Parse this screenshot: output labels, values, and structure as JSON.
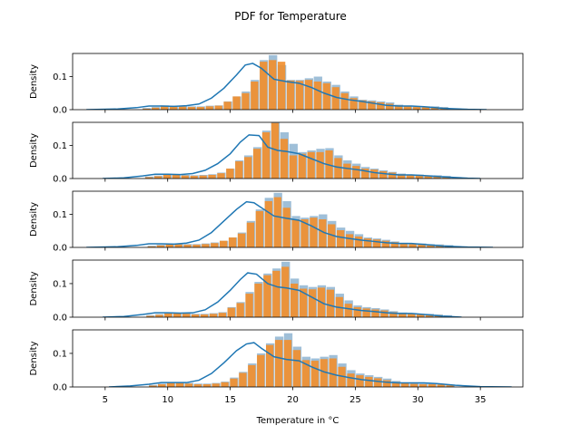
{
  "chart_data": {
    "type": "histogram-kde",
    "title": "PDF for Temperature",
    "xlabel": "Temperature in °C",
    "ylabel": "Density",
    "xlim": [
      2.4,
      38.4
    ],
    "ylim": [
      0,
      0.17
    ],
    "xticks": [
      "5",
      "10",
      "15",
      "20",
      "25",
      "30",
      "35"
    ],
    "yticks": [
      "0.0",
      "0.1"
    ],
    "colors": {
      "hist_back": "#9fbfd8",
      "hist_front": "#f28e2b",
      "kde": "#1f77b4"
    },
    "panels": [
      {
        "back": {
          "start": 8.0,
          "width": 0.72,
          "values": [
            0.005,
            0.008,
            0.013,
            0.012,
            0.011,
            0.01,
            0.01,
            0.012,
            0.013,
            0.025,
            0.04,
            0.055,
            0.09,
            0.15,
            0.165,
            0.135,
            0.09,
            0.09,
            0.095,
            0.1,
            0.085,
            0.075,
            0.055,
            0.04,
            0.03,
            0.028,
            0.025,
            0.022,
            0.015,
            0.012,
            0.01,
            0.01,
            0.01,
            0.008
          ]
        },
        "front": {
          "start": 8.0,
          "width": 0.72,
          "values": [
            0.003,
            0.006,
            0.011,
            0.01,
            0.009,
            0.008,
            0.008,
            0.01,
            0.012,
            0.024,
            0.04,
            0.05,
            0.085,
            0.145,
            0.15,
            0.145,
            0.088,
            0.087,
            0.09,
            0.085,
            0.08,
            0.068,
            0.05,
            0.035,
            0.028,
            0.025,
            0.022,
            0.018,
            0.013,
            0.01,
            0.008,
            0.008,
            0.008,
            0.006
          ]
        },
        "kde_x": [
          3.5,
          6,
          7.5,
          8.5,
          9.5,
          10.5,
          11.5,
          12.5,
          13.5,
          14.5,
          15.5,
          16.2,
          16.8,
          17.5,
          18.5,
          19.5,
          20.5,
          21.5,
          22.5,
          23.5,
          24.5,
          25.5,
          26.5,
          27.5,
          28.5,
          29.5,
          30.5,
          32,
          34,
          35.5
        ],
        "kde_y": [
          0,
          0.002,
          0.006,
          0.011,
          0.011,
          0.01,
          0.012,
          0.017,
          0.035,
          0.065,
          0.105,
          0.135,
          0.14,
          0.125,
          0.092,
          0.085,
          0.08,
          0.067,
          0.05,
          0.037,
          0.03,
          0.025,
          0.019,
          0.013,
          0.011,
          0.011,
          0.009,
          0.004,
          0.001,
          0
        ]
      },
      {
        "back": {
          "start": 8.2,
          "width": 0.72,
          "values": [
            0.006,
            0.009,
            0.014,
            0.013,
            0.011,
            0.01,
            0.011,
            0.013,
            0.018,
            0.03,
            0.055,
            0.07,
            0.095,
            0.145,
            0.17,
            0.14,
            0.105,
            0.08,
            0.085,
            0.09,
            0.092,
            0.07,
            0.055,
            0.045,
            0.035,
            0.03,
            0.025,
            0.02,
            0.015,
            0.012,
            0.012,
            0.01,
            0.01,
            0.008
          ]
        },
        "front": {
          "start": 8.2,
          "width": 0.72,
          "values": [
            0.004,
            0.007,
            0.012,
            0.011,
            0.009,
            0.008,
            0.009,
            0.011,
            0.016,
            0.03,
            0.052,
            0.065,
            0.09,
            0.14,
            0.168,
            0.12,
            0.07,
            0.075,
            0.08,
            0.08,
            0.085,
            0.062,
            0.045,
            0.038,
            0.03,
            0.027,
            0.022,
            0.018,
            0.013,
            0.011,
            0.01,
            0.008,
            0.008,
            0.006
          ]
        },
        "kde_x": [
          4.8,
          6.5,
          8,
          9,
          10,
          11,
          12,
          13,
          14,
          15,
          15.8,
          16.5,
          17.3,
          18,
          18.8,
          19.5,
          20.5,
          21.5,
          22.5,
          23.5,
          24.5,
          25.5,
          26.5,
          27.5,
          28.5,
          29.5,
          30.5,
          32,
          34,
          35
        ],
        "kde_y": [
          0,
          0.002,
          0.008,
          0.013,
          0.013,
          0.012,
          0.015,
          0.025,
          0.045,
          0.075,
          0.11,
          0.132,
          0.13,
          0.095,
          0.085,
          0.082,
          0.075,
          0.06,
          0.045,
          0.035,
          0.03,
          0.025,
          0.018,
          0.014,
          0.011,
          0.011,
          0.009,
          0.005,
          0.001,
          0
        ]
      },
      {
        "back": {
          "start": 8.4,
          "width": 0.72,
          "values": [
            0.005,
            0.008,
            0.012,
            0.011,
            0.01,
            0.01,
            0.012,
            0.015,
            0.02,
            0.03,
            0.045,
            0.08,
            0.115,
            0.15,
            0.165,
            0.14,
            0.095,
            0.09,
            0.095,
            0.1,
            0.08,
            0.06,
            0.05,
            0.04,
            0.03,
            0.027,
            0.023,
            0.018,
            0.014,
            0.012,
            0.012,
            0.01,
            0.009,
            0.007
          ]
        },
        "front": {
          "start": 8.4,
          "width": 0.72,
          "values": [
            0.003,
            0.006,
            0.01,
            0.009,
            0.008,
            0.008,
            0.01,
            0.013,
            0.02,
            0.03,
            0.042,
            0.075,
            0.11,
            0.14,
            0.152,
            0.12,
            0.085,
            0.085,
            0.09,
            0.085,
            0.07,
            0.052,
            0.04,
            0.033,
            0.027,
            0.024,
            0.02,
            0.016,
            0.012,
            0.01,
            0.01,
            0.008,
            0.007,
            0.005
          ]
        },
        "kde_x": [
          3.5,
          6,
          7.5,
          8.5,
          9.5,
          10.5,
          11.5,
          12.5,
          13.5,
          14.5,
          15.5,
          16.3,
          16.9,
          17.5,
          18.5,
          19.5,
          20.5,
          21.5,
          22.5,
          23.5,
          24.5,
          25.5,
          26.5,
          27.5,
          28.5,
          29.5,
          30.5,
          32,
          34,
          36
        ],
        "kde_y": [
          0,
          0.002,
          0.006,
          0.011,
          0.011,
          0.01,
          0.013,
          0.022,
          0.045,
          0.08,
          0.115,
          0.138,
          0.135,
          0.12,
          0.095,
          0.088,
          0.082,
          0.065,
          0.045,
          0.033,
          0.027,
          0.022,
          0.018,
          0.014,
          0.012,
          0.012,
          0.009,
          0.004,
          0.001,
          0
        ]
      },
      {
        "back": {
          "start": 8.3,
          "width": 0.72,
          "values": [
            0.006,
            0.009,
            0.013,
            0.013,
            0.012,
            0.01,
            0.01,
            0.012,
            0.015,
            0.03,
            0.045,
            0.075,
            0.105,
            0.13,
            0.145,
            0.165,
            0.115,
            0.095,
            0.09,
            0.095,
            0.09,
            0.07,
            0.05,
            0.035,
            0.03,
            0.027,
            0.023,
            0.018,
            0.014,
            0.012,
            0.01,
            0.01,
            0.008,
            0.006
          ]
        },
        "front": {
          "start": 8.3,
          "width": 0.72,
          "values": [
            0.004,
            0.007,
            0.011,
            0.011,
            0.01,
            0.008,
            0.008,
            0.01,
            0.013,
            0.028,
            0.042,
            0.07,
            0.1,
            0.125,
            0.138,
            0.15,
            0.1,
            0.085,
            0.083,
            0.088,
            0.082,
            0.06,
            0.04,
            0.03,
            0.026,
            0.023,
            0.02,
            0.015,
            0.012,
            0.01,
            0.008,
            0.008,
            0.006,
            0.004
          ]
        },
        "kde_x": [
          4.8,
          6.5,
          8,
          9,
          10,
          11,
          12,
          13,
          14,
          15,
          15.8,
          16.4,
          17.1,
          18,
          18.8,
          19.5,
          20.5,
          21.5,
          22.5,
          23.5,
          24.5,
          25.5,
          26.5,
          27.5,
          28.5,
          29.5,
          30.5,
          32,
          33.5
        ],
        "kde_y": [
          0,
          0.002,
          0.008,
          0.013,
          0.013,
          0.012,
          0.013,
          0.022,
          0.045,
          0.08,
          0.112,
          0.132,
          0.128,
          0.1,
          0.09,
          0.087,
          0.08,
          0.06,
          0.04,
          0.03,
          0.025,
          0.02,
          0.017,
          0.013,
          0.011,
          0.011,
          0.008,
          0.003,
          0
        ]
      },
      {
        "back": {
          "start": 8.5,
          "width": 0.72,
          "values": [
            0.006,
            0.01,
            0.014,
            0.014,
            0.012,
            0.01,
            0.01,
            0.012,
            0.016,
            0.028,
            0.045,
            0.07,
            0.1,
            0.13,
            0.15,
            0.16,
            0.12,
            0.09,
            0.085,
            0.09,
            0.095,
            0.07,
            0.05,
            0.04,
            0.035,
            0.03,
            0.025,
            0.018,
            0.013,
            0.011,
            0.01,
            0.01,
            0.009,
            0.007
          ]
        },
        "front": {
          "start": 8.5,
          "width": 0.72,
          "values": [
            0.004,
            0.008,
            0.012,
            0.012,
            0.01,
            0.008,
            0.008,
            0.01,
            0.014,
            0.025,
            0.042,
            0.065,
            0.095,
            0.125,
            0.14,
            0.14,
            0.11,
            0.08,
            0.078,
            0.083,
            0.085,
            0.06,
            0.04,
            0.035,
            0.03,
            0.026,
            0.02,
            0.015,
            0.011,
            0.009,
            0.008,
            0.008,
            0.007,
            0.005
          ]
        },
        "kde_x": [
          5.3,
          7,
          8.5,
          9.5,
          10.5,
          11.5,
          12.5,
          13.5,
          14.5,
          15.5,
          16.3,
          16.9,
          17.5,
          18.5,
          19.5,
          20.5,
          21.5,
          22.5,
          23.5,
          24.5,
          25.5,
          26.5,
          27.5,
          28.5,
          29.5,
          30.5,
          31.5,
          33,
          35,
          37.5
        ],
        "kde_y": [
          0,
          0.003,
          0.008,
          0.013,
          0.013,
          0.013,
          0.02,
          0.04,
          0.072,
          0.108,
          0.128,
          0.132,
          0.115,
          0.09,
          0.082,
          0.078,
          0.06,
          0.045,
          0.035,
          0.028,
          0.022,
          0.018,
          0.014,
          0.012,
          0.012,
          0.012,
          0.01,
          0.005,
          0.001,
          0
        ]
      }
    ]
  }
}
